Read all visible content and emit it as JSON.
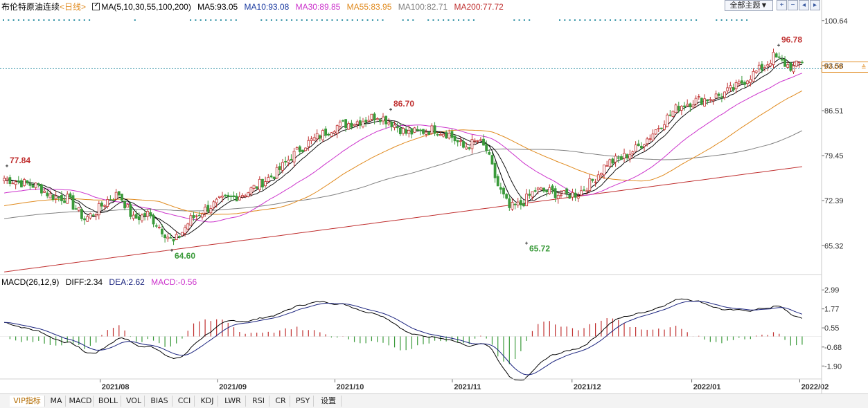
{
  "header": {
    "instrument": "布伦特原油连续",
    "period": "<日线>",
    "ma_params": "MA(5,10,30,55,100,200)",
    "ma5": "MA5:93.05",
    "ma10": "MA10:93.08",
    "ma30": "MA30:89.85",
    "ma55": "MA55:83.95",
    "ma100": "MA100:82.71",
    "ma200": "MA200:77.72"
  },
  "toolbar": {
    "theme_label": "全部主题▼",
    "buttons": [
      "zoom-in",
      "zoom-out",
      "move-left",
      "move-right"
    ]
  },
  "price_tag": "93.09",
  "macd_header": {
    "params": "MACD(26,12,9)",
    "diff": "DIFF:2.34",
    "dea": "DEA:2.62",
    "macd": "MACD:-0.56"
  },
  "tabs": [
    "VIP指标",
    "MA",
    "MACD",
    "BOLL",
    "VOL",
    "BIAS",
    "CCI",
    "KDJ",
    "LWR",
    "RSI",
    "CR",
    "PSY",
    "设置"
  ],
  "colors": {
    "up": "#c03030",
    "down": "#3a9a3a",
    "ma5": "#000000",
    "ma10": "#111111",
    "ma30": "#cc33cc",
    "ma55": "#e08a1e",
    "ma100": "#808080",
    "ma200": "#c03030",
    "dea": "#1a237e",
    "diff": "#000000",
    "header_ma30": "#cc33cc",
    "header_ma55": "#e08a1e",
    "header_ma100": "#808080",
    "header_ma200": "#c03030",
    "header_ma10": "#1a3aa0",
    "header_period": "#e08a1e"
  },
  "chart_data": [
    {
      "type": "candlestick",
      "title": "布伦特原油连续",
      "x_ticks": [
        "2021/08",
        "2021/09",
        "2021/10",
        "2021/11",
        "2021/12",
        "2022/01",
        "2022/02"
      ],
      "y_ticks": [
        100.64,
        93.58,
        86.51,
        79.45,
        72.39,
        65.32
      ],
      "ylim": [
        60.9,
        101.7
      ],
      "current_price": 93.09,
      "annotations": [
        {
          "label": "77.84",
          "value": 77.84,
          "kind": "high"
        },
        {
          "label": "64.60",
          "value": 64.6,
          "kind": "low"
        },
        {
          "label": "86.70",
          "value": 86.7,
          "kind": "high"
        },
        {
          "label": "65.72",
          "value": 65.72,
          "kind": "low"
        },
        {
          "label": "96.78",
          "value": 96.78,
          "kind": "high"
        }
      ],
      "close_path": [
        [
          0,
          75.9
        ],
        [
          6,
          75.2
        ],
        [
          12,
          74.6
        ],
        [
          16,
          73.2
        ],
        [
          22,
          72.7
        ],
        [
          28,
          69.5
        ],
        [
          32,
          70.7
        ],
        [
          36,
          72.5
        ],
        [
          40,
          73.5
        ],
        [
          45,
          69.5
        ],
        [
          50,
          70.3
        ],
        [
          55,
          67.8
        ],
        [
          59,
          65.8
        ],
        [
          62,
          67.5
        ],
        [
          65,
          69.5
        ],
        [
          70,
          71.0
        ],
        [
          75,
          72.3
        ],
        [
          80,
          72.9
        ],
        [
          85,
          73.8
        ],
        [
          90,
          75.3
        ],
        [
          95,
          76.8
        ],
        [
          100,
          79.3
        ],
        [
          105,
          81.2
        ],
        [
          110,
          82.6
        ],
        [
          115,
          84.0
        ],
        [
          120,
          84.5
        ],
        [
          125,
          85.0
        ],
        [
          130,
          85.8
        ],
        [
          135,
          84.6
        ],
        [
          140,
          83.0
        ],
        [
          145,
          83.2
        ],
        [
          150,
          83.6
        ],
        [
          155,
          82.8
        ],
        [
          160,
          80.7
        ],
        [
          165,
          81.8
        ],
        [
          168,
          80.3
        ],
        [
          172,
          74.7
        ],
        [
          176,
          71.2
        ],
        [
          180,
          71.8
        ],
        [
          185,
          74.0
        ],
        [
          190,
          73.8
        ],
        [
          195,
          73.2
        ],
        [
          200,
          73.5
        ],
        [
          205,
          75.5
        ],
        [
          210,
          78.3
        ],
        [
          215,
          79.0
        ],
        [
          220,
          80.5
        ],
        [
          225,
          82.5
        ],
        [
          230,
          85.0
        ],
        [
          235,
          87.2
        ],
        [
          240,
          88.0
        ],
        [
          245,
          88.4
        ],
        [
          250,
          89.0
        ],
        [
          255,
          90.2
        ],
        [
          260,
          92.0
        ],
        [
          265,
          93.5
        ],
        [
          268,
          95.0
        ],
        [
          272,
          93.8
        ],
        [
          275,
          93.2
        ],
        [
          278,
          94.3
        ]
      ],
      "ma_lines": [
        {
          "name": "MA30",
          "value": 89.85
        },
        {
          "name": "MA55",
          "value": 83.95
        },
        {
          "name": "MA100",
          "value": 82.71
        },
        {
          "name": "MA200",
          "value": 77.72
        }
      ]
    },
    {
      "type": "macd",
      "title": "MACD(26,12,9)",
      "y_ticks": [
        2.99,
        1.77,
        0.55,
        -0.68,
        -1.9
      ],
      "ylim": [
        -2.6,
        3.4
      ],
      "diff": 2.34,
      "dea": 2.62,
      "macd": -0.56
    }
  ]
}
